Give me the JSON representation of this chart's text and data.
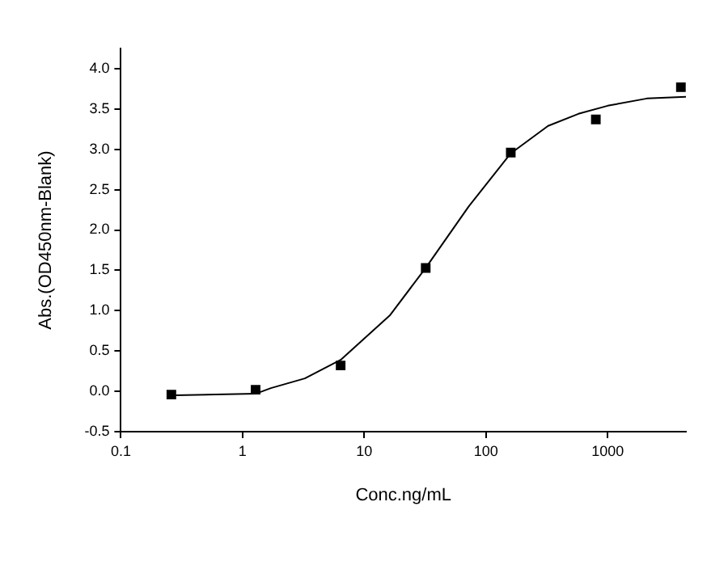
{
  "chart_data": {
    "type": "scatter",
    "xlabel": "Conc.ng/mL",
    "ylabel": "Abs.(OD450nm-Blank)",
    "log": "x",
    "grid": false,
    "legend": false,
    "marker": "square",
    "xlim": [
      0.1,
      4400
    ],
    "xticks": [
      0.1,
      1,
      10,
      100,
      1000
    ],
    "ylim": [
      -0.5,
      4.25
    ],
    "yticks": [
      {
        "value": -0.5,
        "label": "-0.5"
      },
      {
        "value": 0,
        "label": "0.0"
      },
      {
        "value": 0.5,
        "label": "0.5"
      },
      {
        "value": 1,
        "label": "1.0"
      },
      {
        "value": 1.5,
        "label": "1.5"
      },
      {
        "value": 2,
        "label": "2.0"
      },
      {
        "value": 2.5,
        "label": "2.5"
      },
      {
        "value": 3,
        "label": "3.0"
      },
      {
        "value": 3.5,
        "label": "3.5"
      },
      {
        "value": 4,
        "label": "4.0"
      }
    ],
    "series": [
      {
        "color": "#000000",
        "x": [
          0.26,
          1.28,
          6.4,
          32,
          160,
          800,
          4000
        ],
        "values": [
          -0.04,
          0.02,
          0.32,
          1.53,
          2.96,
          3.37,
          3.77
        ]
      },
      {
        "type": "line",
        "color": "#000000",
        "marker": "none",
        "line_style": "solid",
        "x": [
          0.277,
          1.28,
          1.71,
          3.25,
          6.4,
          16.2,
          32,
          72,
          160,
          324,
          575,
          1000,
          2100,
          4400
        ],
        "values": [
          -0.05,
          -0.03,
          0.04,
          0.16,
          0.39,
          0.94,
          1.53,
          2.29,
          2.95,
          3.29,
          3.44,
          3.54,
          3.63,
          3.65
        ]
      }
    ]
  }
}
